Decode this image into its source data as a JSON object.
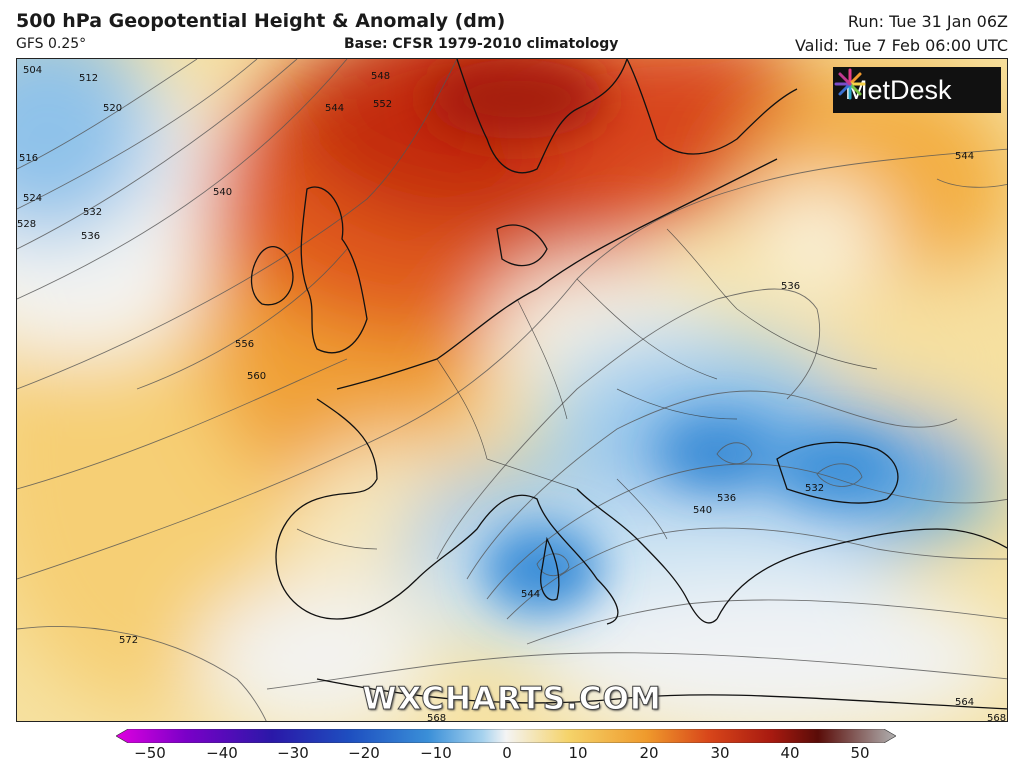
{
  "header": {
    "title": "500 hPa Geopotential Height & Anomaly (dm)",
    "model": "GFS 0.25°",
    "base": "Base: CFSR 1979-2010 climatology",
    "run": "Run: Tue 31 Jan 06Z",
    "valid": "Valid: Tue 7 Feb 06:00 UTC"
  },
  "logo": {
    "text": "MetDesk",
    "icon": "starburst-logo-icon"
  },
  "watermark": "WXCHARTS.COM",
  "contour_labels": [
    "504",
    "512",
    "520",
    "516",
    "524",
    "528",
    "532",
    "536",
    "540",
    "544",
    "548",
    "552",
    "556",
    "560",
    "544",
    "536",
    "532",
    "536",
    "540",
    "544",
    "572",
    "564",
    "568",
    "568"
  ],
  "colorbar": {
    "ticks": [
      "−50",
      "−40",
      "−30",
      "−20",
      "−10",
      "0",
      "10",
      "20",
      "30",
      "40",
      "50"
    ],
    "colors": [
      "#e000e0",
      "#7a00c8",
      "#2a18a8",
      "#1e4fc0",
      "#3a8fd8",
      "#a6d2ee",
      "#f4f4f4",
      "#f5d36a",
      "#ef9a2c",
      "#d8461a",
      "#a81a10",
      "#5a0c08",
      "#b0b0b0"
    ]
  },
  "palette": {
    "deep_warm": "#b81f0e",
    "warm": "#e4501a",
    "orange": "#f29a2e",
    "yellow": "#f7d877",
    "neutral": "#f4f2ec",
    "cool": "#b9d9f0",
    "blue": "#4f9edf",
    "deep_blue": "#2870c4"
  }
}
